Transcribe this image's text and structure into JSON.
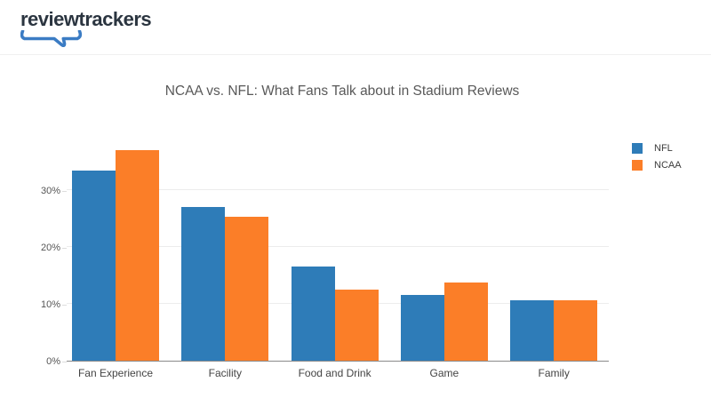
{
  "header": {
    "logo_text": "reviewtrackers"
  },
  "chart_data": {
    "type": "bar",
    "title": "NCAA vs. NFL: What Fans Talk about in Stadium Reviews",
    "categories": [
      "Fan Experience",
      "Facility",
      "Food and Drink",
      "Game",
      "Family"
    ],
    "series": [
      {
        "name": "NFL",
        "color": "#2e7cb8",
        "values": [
          33.5,
          27.0,
          16.5,
          11.6,
          10.7
        ]
      },
      {
        "name": "NCAA",
        "color": "#fb7e28",
        "values": [
          37.0,
          25.3,
          12.5,
          13.8,
          10.6
        ]
      }
    ],
    "xlabel": "",
    "ylabel": "",
    "y_ticks": [
      {
        "label": "0%",
        "value": 0
      },
      {
        "label": "10%",
        "value": 10
      },
      {
        "label": "20%",
        "value": 20
      },
      {
        "label": "30%",
        "value": 30
      }
    ],
    "ylim": [
      0,
      40
    ],
    "grid": true,
    "legend_position": "top-right",
    "colors": {
      "axis": "#8a8a8a",
      "gridline": "#ececec",
      "title": "#595959"
    }
  }
}
